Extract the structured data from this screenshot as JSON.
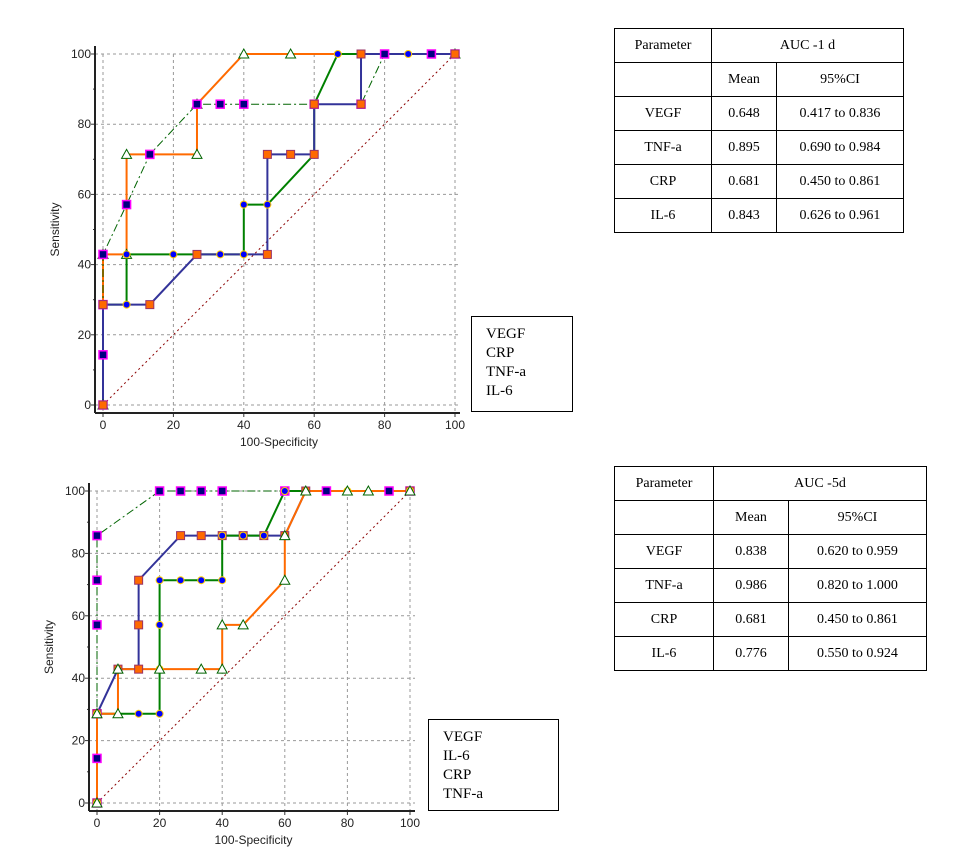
{
  "chart_data": [
    {
      "type": "line",
      "xlabel": "100-Specificity",
      "ylabel": "Sensitivity",
      "xlim": [
        0,
        100
      ],
      "ylim": [
        0,
        100
      ],
      "xticks": [
        0,
        20,
        40,
        60,
        80,
        100
      ],
      "yticks": [
        0,
        20,
        40,
        60,
        80,
        100
      ],
      "grid": true,
      "reference_line": "diagonal",
      "legend": [
        "VEGF",
        "CRP",
        "TNF-a",
        "IL-6"
      ],
      "legend_placement": "bottom-right",
      "series": [
        {
          "color": "#ff6a00",
          "line": "solid",
          "marker": "triangle",
          "x": [
            0,
            0,
            6.7,
            6.7,
            26.7,
            26.7,
            40,
            53.3,
            100
          ],
          "y": [
            0,
            42.9,
            42.9,
            71.4,
            71.4,
            85.7,
            100,
            100,
            100
          ]
        },
        {
          "color": "#006400",
          "line": "dashdot",
          "marker": "square",
          "x": [
            0,
            0,
            0,
            0,
            6.7,
            13.3,
            26.7,
            33.3,
            40,
            60,
            73.3,
            80,
            93.3,
            100
          ],
          "y": [
            0,
            14.3,
            28.6,
            42.9,
            57.1,
            71.4,
            85.7,
            85.7,
            85.7,
            85.7,
            85.7,
            100,
            100,
            100
          ]
        },
        {
          "color": "#008000",
          "line": "solid",
          "marker": "dot",
          "x": [
            0,
            0,
            6.7,
            6.7,
            20,
            33.3,
            40,
            40,
            46.7,
            60,
            60,
            66.7,
            86.7,
            100
          ],
          "y": [
            0,
            28.6,
            28.6,
            42.9,
            42.9,
            42.9,
            42.9,
            57.1,
            57.1,
            71.4,
            85.7,
            100,
            100,
            100
          ]
        },
        {
          "color": "#333399",
          "line": "solid",
          "marker": "orange-square",
          "x": [
            0,
            0,
            13.3,
            26.7,
            46.7,
            46.7,
            53.3,
            60,
            60,
            73.3,
            73.3,
            100
          ],
          "y": [
            0,
            28.6,
            28.6,
            42.9,
            42.9,
            71.4,
            71.4,
            71.4,
            85.7,
            85.7,
            100,
            100
          ]
        }
      ]
    },
    {
      "type": "line",
      "xlabel": "100-Specificity",
      "ylabel": "Sensitivity",
      "xlim": [
        0,
        100
      ],
      "ylim": [
        0,
        100
      ],
      "xticks": [
        0,
        20,
        40,
        60,
        80,
        100
      ],
      "yticks": [
        0,
        20,
        40,
        60,
        80,
        100
      ],
      "grid": true,
      "reference_line": "diagonal",
      "legend": [
        "VEGF",
        "IL-6",
        "CRP",
        "TNF-a"
      ],
      "legend_placement": "bottom-right",
      "series": [
        {
          "color": "#006400",
          "line": "dashdot",
          "marker": "square",
          "x": [
            0,
            0,
            0,
            0,
            0,
            0,
            20,
            26.7,
            33.3,
            40,
            60,
            73.3,
            93.3,
            100
          ],
          "y": [
            0,
            14.3,
            28.6,
            57.1,
            71.4,
            85.7,
            100,
            100,
            100,
            100,
            100,
            100,
            100,
            100
          ]
        },
        {
          "color": "#333399",
          "line": "solid",
          "marker": "orange-square",
          "x": [
            0,
            0,
            6.7,
            13.3,
            13.3,
            13.3,
            26.7,
            33.3,
            40,
            46.7,
            53.3,
            60,
            66.7,
            100
          ],
          "y": [
            0,
            28.6,
            42.9,
            42.9,
            57.1,
            71.4,
            85.7,
            85.7,
            85.7,
            85.7,
            85.7,
            85.7,
            100,
            100
          ]
        },
        {
          "color": "#008000",
          "line": "solid",
          "marker": "dot",
          "x": [
            0,
            0,
            13.3,
            20,
            20,
            20,
            20,
            26.7,
            33.3,
            40,
            40,
            46.7,
            53.3,
            60,
            80,
            100
          ],
          "y": [
            0,
            28.6,
            28.6,
            28.6,
            42.9,
            57.1,
            71.4,
            71.4,
            71.4,
            71.4,
            85.7,
            85.7,
            85.7,
            100,
            100,
            100
          ]
        },
        {
          "color": "#ff6a00",
          "line": "solid",
          "marker": "triangle",
          "x": [
            0,
            0,
            6.7,
            6.7,
            20,
            33.3,
            40,
            40,
            46.7,
            60,
            60,
            66.7,
            80,
            86.7,
            100
          ],
          "y": [
            0,
            28.6,
            28.6,
            42.9,
            42.9,
            42.9,
            42.9,
            57.1,
            57.1,
            71.4,
            85.7,
            100,
            100,
            100,
            100
          ]
        }
      ]
    }
  ],
  "tables": [
    {
      "header": "Parameter",
      "title": "AUC -1 d",
      "sub": [
        "Mean",
        "95%CI"
      ],
      "rows": [
        [
          "VEGF",
          "0.648",
          "0.417 to 0.836"
        ],
        [
          "TNF-a",
          "0.895",
          "0.690 to 0.984"
        ],
        [
          "CRP",
          "0.681",
          "0.450 to 0.861"
        ],
        [
          "IL-6",
          "0.843",
          "0.626 to 0.961"
        ]
      ]
    },
    {
      "header": "Parameter",
      "title": "AUC -5d",
      "sub": [
        "Mean",
        "95%CI"
      ],
      "rows": [
        [
          "VEGF",
          "0.838",
          "0.620 to 0.959"
        ],
        [
          "TNF-a",
          "0.986",
          "0.820 to 1.000"
        ],
        [
          "CRP",
          "0.681",
          "0.450 to 0.861"
        ],
        [
          "IL-6",
          "0.776",
          "0.550 to 0.924"
        ]
      ]
    }
  ]
}
